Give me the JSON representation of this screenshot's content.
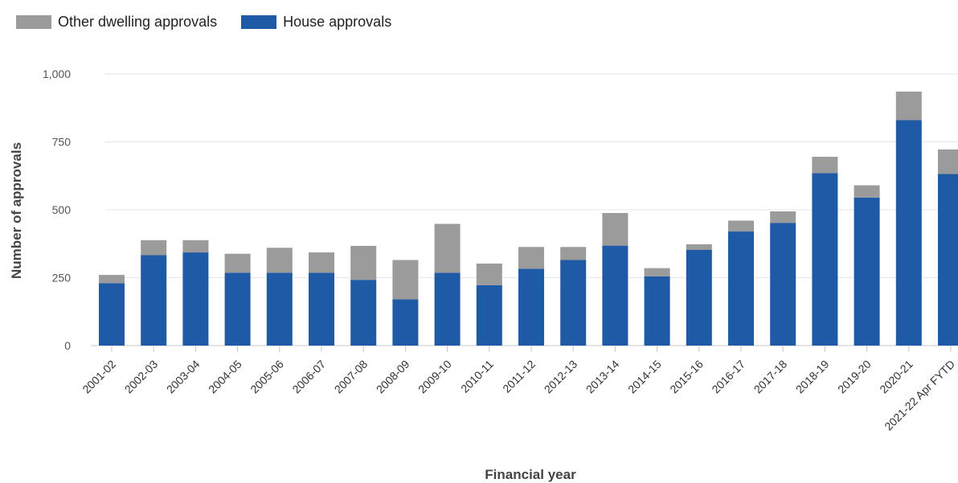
{
  "chart_data": {
    "type": "bar",
    "stacked": true,
    "xlabel": "Financial year",
    "ylabel": "Number of approvals",
    "ylim": [
      0,
      1000
    ],
    "yticks": [
      0,
      250,
      500,
      750,
      1000
    ],
    "ytick_labels": [
      "0",
      "250",
      "500",
      "750",
      "1,000"
    ],
    "grid": true,
    "legend_position": "top-left",
    "categories": [
      "2001-02",
      "2002-03",
      "2003-04",
      "2004-05",
      "2005-06",
      "2006-07",
      "2007-08",
      "2008-09",
      "2009-10",
      "2010-11",
      "2011-12",
      "2012-13",
      "2013-14",
      "2014-15",
      "2015-16",
      "2016-17",
      "2017-18",
      "2018-19",
      "2019-20",
      "2020-21",
      "2021-22 Apr FYTD"
    ],
    "series": [
      {
        "name": "Other dwelling approvals",
        "color": "#9b9b9b",
        "values": [
          30,
          55,
          45,
          70,
          92,
          75,
          125,
          145,
          180,
          80,
          80,
          48,
          120,
          30,
          20,
          40,
          42,
          60,
          45,
          105,
          90
        ]
      },
      {
        "name": "House approvals",
        "color": "#1f5aa6",
        "values": [
          230,
          333,
          343,
          268,
          268,
          268,
          242,
          170,
          268,
          222,
          283,
          315,
          368,
          255,
          353,
          420,
          452,
          635,
          545,
          830,
          632
        ]
      }
    ]
  }
}
